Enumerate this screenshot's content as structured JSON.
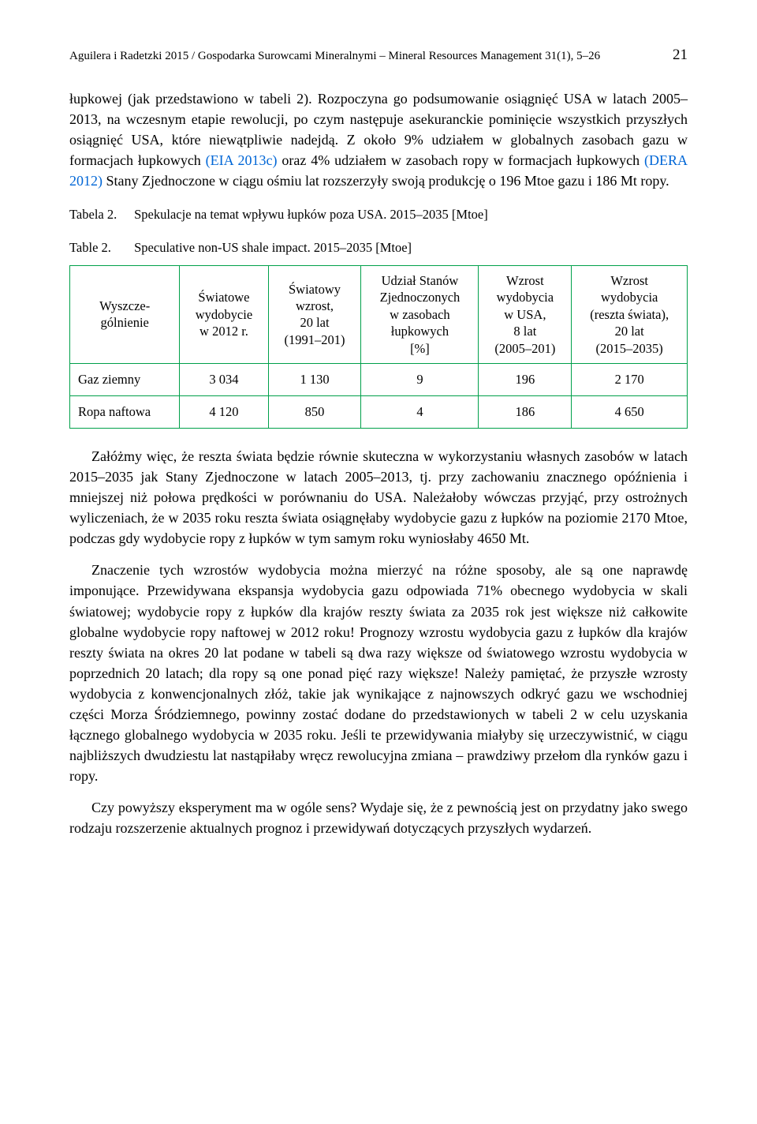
{
  "running_head": {
    "text": "Aguilera i Radetzki 2015 / Gospodarka Surowcami Mineralnymi – Mineral Resources Management 31(1), 5–26",
    "page_number": "21"
  },
  "paragraphs": {
    "p1a": "łupkowej (jak przedstawiono w tabeli 2). Rozpoczyna go podsumowanie osiągnięć USA w latach 2005–2013, na wczesnym etapie rewolucji, po czym następuje asekuranckie pominięcie wszystkich przyszłych osiągnięć USA, które niewątpliwie nadejdą. Z około 9% udziałem w globalnych zasobach gazu w formacjach łupkowych ",
    "p1cite1": "(EIA 2013c)",
    "p1b": " oraz 4% udziałem w zasobach ropy w formacjach łupkowych ",
    "p1cite2": "(DERA 2012)",
    "p1c": " Stany Zjednoczone w ciągu ośmiu lat rozszerzyły swoją produkcję o 196 Mtoe gazu i 186 Mt ropy.",
    "p2": "Załóżmy więc, że reszta świata będzie równie skuteczna w wykorzystaniu własnych zasobów w latach 2015–2035 jak Stany Zjednoczone w latach 2005–2013, tj. przy zachowaniu znacznego opóźnienia i mniejszej niż połowa prędkości w porównaniu do USA. Należałoby wówczas przyjąć, przy ostrożnych wyliczeniach, że w 2035 roku reszta świata osiągnęłaby wydobycie gazu z łupków na poziomie 2170 Mtoe, podczas gdy wydobycie ropy z łupków w tym samym roku wyniosłaby 4650 Mt.",
    "p3": "Znaczenie tych wzrostów wydobycia można mierzyć na różne sposoby, ale są one naprawdę imponujące. Przewidywana ekspansja wydobycia gazu odpowiada 71% obecnego wydobycia w skali światowej; wydobycie ropy z łupków dla krajów reszty świata za 2035 rok jest większe niż całkowite globalne wydobycie ropy naftowej w 2012 roku! Prognozy wzrostu wydobycia gazu z łupków dla krajów reszty świata na okres 20 lat podane w tabeli są dwa razy większe od światowego wzrostu wydobycia w poprzednich 20 latach; dla ropy są one ponad pięć razy większe! Należy pamiętać, że przyszłe wzrosty wydobycia z konwencjonalnych złóż, takie jak wynikające z najnowszych odkryć gazu we wschodniej części Morza Śródziemnego, powinny zostać dodane do przedstawionych w tabeli 2 w celu uzyskania łącznego globalnego wydobycia w 2035 roku. Jeśli te przewidywania miałyby się urzeczywistnić, w ciągu najbliższych dwudziestu lat nastąpiłaby wręcz rewolucyjna zmiana – prawdziwy przełom dla rynków gazu i ropy.",
    "p4": "Czy powyższy eksperyment ma w ogóle sens? Wydaje się, że z pewnością jest on przydatny jako swego rodzaju rozszerzenie aktualnych prognoz i przewidywań dotyczących przyszłych wydarzeń."
  },
  "table": {
    "caption_pl_num": "Tabela 2.",
    "caption_pl_text": "Spekulacje na temat wpływu łupków poza USA. 2015–2035 [Mtoe]",
    "caption_en_num": "Table 2.",
    "caption_en_text": "Speculative non-US shale impact. 2015–2035 [Mtoe]",
    "border_color": "#00a04a",
    "columns": [
      "Wyszcze-\ngólnienie",
      "Światowe\nwydobycie\nw 2012 r.",
      "Światowy\nwzrost,\n20 lat\n(1991–201)",
      "Udział Stanów\nZjednoczonych\nw zasobach\nłupkowych\n[%]",
      "Wzrost\nwydobycia\nw USA,\n8 lat\n(2005–201)",
      "Wzrost\nwydobycia\n(reszta świata),\n20 lat\n(2015–2035)"
    ],
    "rows": [
      {
        "label": "Gaz ziemny",
        "values": [
          "3 034",
          "1 130",
          "9",
          "196",
          "2 170"
        ]
      },
      {
        "label": "Ropa naftowa",
        "values": [
          "4 120",
          "850",
          "4",
          "186",
          "4 650"
        ]
      }
    ]
  }
}
